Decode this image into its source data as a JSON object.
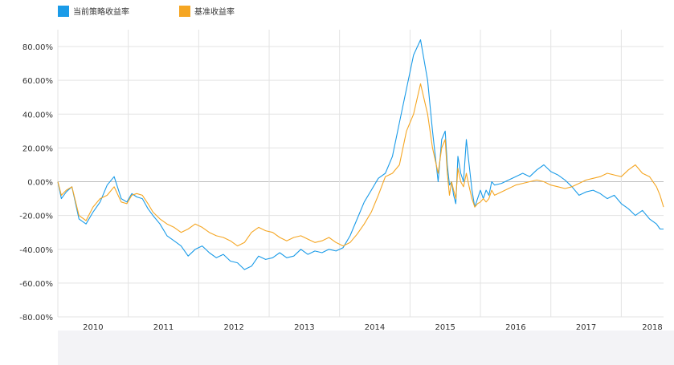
{
  "colors": {
    "strategy": "#1a9be8",
    "benchmark": "#f5a623",
    "grid": "#e3e3e3",
    "zero": "#bdbdbd",
    "axis_text": "#333333"
  },
  "chart_data": {
    "type": "line",
    "title": "",
    "xlabel": "",
    "ylabel": "",
    "ylim": [
      -0.8,
      0.9
    ],
    "xlim": [
      2009.5,
      2018.1
    ],
    "y_ticks": [
      -0.8,
      -0.6,
      -0.4,
      -0.2,
      0.0,
      0.2,
      0.4,
      0.6,
      0.8
    ],
    "y_tick_labels": [
      "-80.00%",
      "-60.00%",
      "-40.00%",
      "-20.00%",
      "0.00%",
      "20.00%",
      "40.00%",
      "60.00%",
      "80.00%"
    ],
    "x_tick_labels": [
      "2010",
      "2011",
      "2012",
      "2013",
      "2014",
      "2015",
      "2016",
      "2017",
      "2018"
    ],
    "grid": true,
    "legend_position": "top-left",
    "series": [
      {
        "name": "当前策略收益率",
        "color_key": "strategy",
        "x": [
          2009.5,
          2009.55,
          2009.62,
          2009.7,
          2009.8,
          2009.9,
          2010.0,
          2010.1,
          2010.2,
          2010.3,
          2010.4,
          2010.48,
          2010.55,
          2010.62,
          2010.7,
          2010.78,
          2010.85,
          2010.95,
          2011.05,
          2011.15,
          2011.25,
          2011.35,
          2011.45,
          2011.55,
          2011.65,
          2011.75,
          2011.85,
          2011.95,
          2012.05,
          2012.15,
          2012.25,
          2012.35,
          2012.45,
          2012.55,
          2012.65,
          2012.75,
          2012.85,
          2012.95,
          2013.05,
          2013.15,
          2013.25,
          2013.35,
          2013.45,
          2013.55,
          2013.65,
          2013.75,
          2013.85,
          2013.95,
          2014.05,
          2014.15,
          2014.25,
          2014.35,
          2014.45,
          2014.55,
          2014.65,
          2014.75,
          2014.82,
          2014.9,
          2014.95,
          2015.0,
          2015.03,
          2015.06,
          2015.09,
          2015.12,
          2015.15,
          2015.18,
          2015.22,
          2015.26,
          2015.3,
          2015.34,
          2015.38,
          2015.42,
          2015.46,
          2015.5,
          2015.54,
          2015.58,
          2015.62,
          2015.66,
          2015.7,
          2015.8,
          2015.9,
          2016.0,
          2016.1,
          2016.2,
          2016.3,
          2016.4,
          2016.5,
          2016.6,
          2016.7,
          2016.8,
          2016.9,
          2017.0,
          2017.1,
          2017.2,
          2017.3,
          2017.4,
          2017.5,
          2017.6,
          2017.7,
          2017.8,
          2017.9,
          2018.0,
          2018.05,
          2018.1
        ],
        "values": [
          0.0,
          -0.1,
          -0.06,
          -0.03,
          -0.22,
          -0.25,
          -0.18,
          -0.12,
          -0.02,
          0.03,
          -0.1,
          -0.12,
          -0.07,
          -0.09,
          -0.1,
          -0.16,
          -0.2,
          -0.25,
          -0.32,
          -0.35,
          -0.38,
          -0.44,
          -0.4,
          -0.38,
          -0.42,
          -0.45,
          -0.43,
          -0.47,
          -0.48,
          -0.52,
          -0.5,
          -0.44,
          -0.46,
          -0.45,
          -0.42,
          -0.45,
          -0.44,
          -0.4,
          -0.43,
          -0.41,
          -0.42,
          -0.4,
          -0.41,
          -0.39,
          -0.32,
          -0.22,
          -0.12,
          -0.05,
          0.02,
          0.05,
          0.15,
          0.35,
          0.55,
          0.75,
          0.84,
          0.6,
          0.3,
          0.0,
          0.25,
          0.3,
          0.1,
          -0.02,
          0.0,
          -0.08,
          -0.13,
          0.15,
          0.05,
          0.0,
          0.25,
          0.1,
          -0.05,
          -0.15,
          -0.1,
          -0.05,
          -0.1,
          -0.05,
          -0.08,
          0.0,
          -0.02,
          -0.01,
          0.01,
          0.03,
          0.05,
          0.03,
          0.07,
          0.1,
          0.06,
          0.04,
          0.01,
          -0.03,
          -0.08,
          -0.06,
          -0.05,
          -0.07,
          -0.1,
          -0.08,
          -0.13,
          -0.16,
          -0.2,
          -0.17,
          -0.22,
          -0.25,
          -0.28,
          -0.28
        ]
      },
      {
        "name": "基准收益率",
        "color_key": "benchmark",
        "x": [
          2009.5,
          2009.55,
          2009.62,
          2009.7,
          2009.8,
          2009.9,
          2010.0,
          2010.1,
          2010.2,
          2010.3,
          2010.4,
          2010.48,
          2010.55,
          2010.62,
          2010.7,
          2010.78,
          2010.85,
          2010.95,
          2011.05,
          2011.15,
          2011.25,
          2011.35,
          2011.45,
          2011.55,
          2011.65,
          2011.75,
          2011.85,
          2011.95,
          2012.05,
          2012.15,
          2012.25,
          2012.35,
          2012.45,
          2012.55,
          2012.65,
          2012.75,
          2012.85,
          2012.95,
          2013.05,
          2013.15,
          2013.25,
          2013.35,
          2013.45,
          2013.55,
          2013.65,
          2013.75,
          2013.85,
          2013.95,
          2014.05,
          2014.15,
          2014.25,
          2014.35,
          2014.45,
          2014.55,
          2014.65,
          2014.75,
          2014.82,
          2014.9,
          2014.95,
          2015.0,
          2015.03,
          2015.06,
          2015.09,
          2015.12,
          2015.15,
          2015.18,
          2015.22,
          2015.26,
          2015.3,
          2015.34,
          2015.38,
          2015.42,
          2015.46,
          2015.5,
          2015.54,
          2015.58,
          2015.62,
          2015.66,
          2015.7,
          2015.8,
          2015.9,
          2016.0,
          2016.1,
          2016.2,
          2016.3,
          2016.4,
          2016.5,
          2016.6,
          2016.7,
          2016.8,
          2016.9,
          2017.0,
          2017.1,
          2017.2,
          2017.3,
          2017.4,
          2017.5,
          2017.6,
          2017.7,
          2017.8,
          2017.9,
          2018.0,
          2018.05,
          2018.1
        ],
        "values": [
          0.0,
          -0.08,
          -0.05,
          -0.03,
          -0.2,
          -0.23,
          -0.15,
          -0.1,
          -0.08,
          -0.03,
          -0.12,
          -0.13,
          -0.08,
          -0.07,
          -0.08,
          -0.13,
          -0.18,
          -0.22,
          -0.25,
          -0.27,
          -0.3,
          -0.28,
          -0.25,
          -0.27,
          -0.3,
          -0.32,
          -0.33,
          -0.35,
          -0.38,
          -0.36,
          -0.3,
          -0.27,
          -0.29,
          -0.3,
          -0.33,
          -0.35,
          -0.33,
          -0.32,
          -0.34,
          -0.36,
          -0.35,
          -0.33,
          -0.36,
          -0.38,
          -0.36,
          -0.31,
          -0.25,
          -0.18,
          -0.08,
          0.03,
          0.05,
          0.1,
          0.3,
          0.4,
          0.58,
          0.4,
          0.2,
          0.05,
          0.2,
          0.25,
          0.05,
          -0.08,
          0.0,
          -0.05,
          -0.1,
          0.08,
          0.0,
          -0.03,
          0.05,
          -0.03,
          -0.1,
          -0.15,
          -0.13,
          -0.12,
          -0.1,
          -0.12,
          -0.1,
          -0.05,
          -0.08,
          -0.06,
          -0.04,
          -0.02,
          -0.01,
          0.0,
          0.01,
          0.0,
          -0.02,
          -0.03,
          -0.04,
          -0.03,
          -0.01,
          0.01,
          0.02,
          0.03,
          0.05,
          0.04,
          0.03,
          0.07,
          0.1,
          0.05,
          0.03,
          -0.03,
          -0.08,
          -0.15
        ]
      }
    ]
  }
}
